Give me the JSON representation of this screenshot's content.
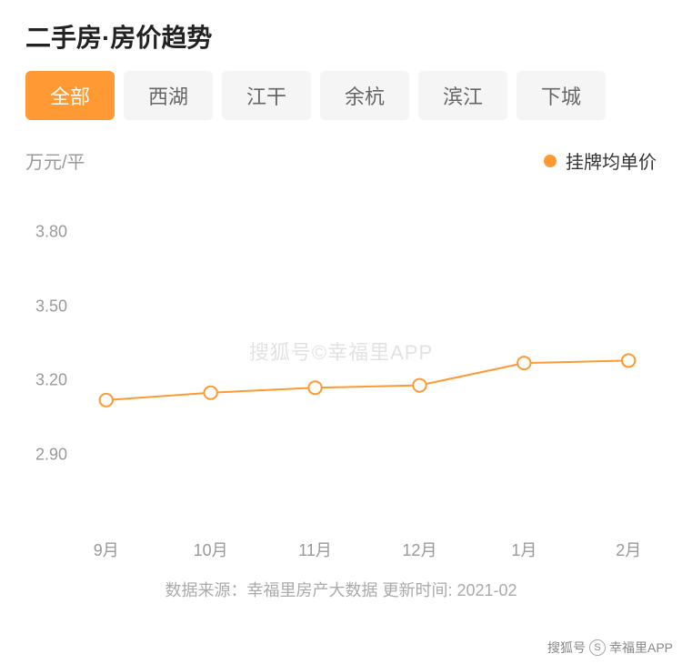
{
  "title": "二手房·房价趋势",
  "tabs": [
    {
      "label": "全部",
      "active": true
    },
    {
      "label": "西湖",
      "active": false
    },
    {
      "label": "江干",
      "active": false
    },
    {
      "label": "余杭",
      "active": false
    },
    {
      "label": "滨江",
      "active": false
    },
    {
      "label": "下城",
      "active": false
    }
  ],
  "chart": {
    "type": "line",
    "y_unit": "万元/平",
    "legend_label": "挂牌均单价",
    "legend_color": "#ff9933",
    "line_color": "#ff9933",
    "line_width": 2,
    "marker_radius": 7,
    "marker_fill": "#ffffff",
    "marker_stroke": "#ff9933",
    "marker_stroke_width": 2,
    "background_color": "#ffffff",
    "ylim": [
      2.6,
      4.0
    ],
    "yticks": [
      2.9,
      3.2,
      3.5,
      3.8
    ],
    "x_categories": [
      "9月",
      "10月",
      "11月",
      "12月",
      "1月",
      "2月"
    ],
    "values": [
      3.12,
      3.15,
      3.17,
      3.18,
      3.27,
      3.28
    ],
    "label_fontsize": 18,
    "label_color": "#999999",
    "title_color": "#222222",
    "title_fontsize": 28
  },
  "footer": "数据来源：幸福里房产大数据 更新时间: 2021-02",
  "watermark": {
    "center": "搜狐号©幸福里APP",
    "corner_prefix": "搜狐号",
    "corner_circle": "S",
    "corner_suffix": "幸福里APP"
  }
}
